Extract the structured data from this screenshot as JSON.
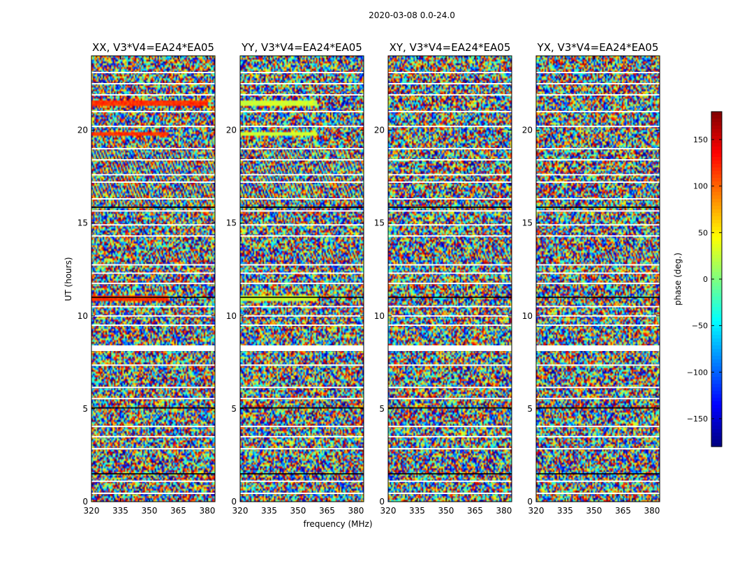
{
  "figure": {
    "suptitle": "2020-03-08 0.0-24.0",
    "xlabel": "frequency (MHz)",
    "ylabel": "UT (hours)"
  },
  "colorbar": {
    "label": "phase (deg.)",
    "range": [
      -180,
      180
    ],
    "ticks": [
      150,
      100,
      50,
      0,
      -50,
      -100,
      -150
    ],
    "tick_labels": [
      "150",
      "100",
      "50",
      "0",
      "−50",
      "−100",
      "−150"
    ],
    "colormap": [
      "#00007f",
      "#0000ff",
      "#007fff",
      "#00ffff",
      "#7fff7f",
      "#ffff00",
      "#ff7f00",
      "#ff0000",
      "#7f0000"
    ]
  },
  "chart_data": [
    {
      "type": "heatmap",
      "title": "XX, V3*V4=EA24*EA05",
      "xlabel": "frequency (MHz)",
      "ylabel": "UT (hours)",
      "xlim": [
        320,
        384
      ],
      "ylim": [
        0,
        24
      ],
      "xticks": [
        320,
        335,
        350,
        365,
        380
      ],
      "xtick_labels": [
        "320",
        "335",
        "350",
        "365",
        "380"
      ],
      "yticks": [
        0,
        5,
        10,
        15,
        20
      ],
      "ytick_labels": [
        "0",
        "5",
        "10",
        "15",
        "20"
      ],
      "value": "phase (deg.), mostly random noise in [-180, 180]",
      "features": [
        {
          "kind": "coherent",
          "ut": [
            21.3,
            21.6
          ],
          "freq": [
            320,
            380
          ],
          "phase_deg": 120
        },
        {
          "kind": "coherent",
          "ut": [
            19.7,
            19.9
          ],
          "freq": [
            320,
            360
          ],
          "phase_deg": 120
        },
        {
          "kind": "coherent",
          "ut": [
            10.8,
            11.1
          ],
          "freq": [
            320,
            360
          ],
          "phase_deg": 120
        },
        {
          "kind": "fringe",
          "ut": [
            16.0,
            19.0
          ],
          "freq": [
            320,
            384
          ]
        },
        {
          "kind": "fringe",
          "ut": [
            13.0,
            13.5
          ],
          "freq": [
            350,
            384
          ]
        }
      ]
    },
    {
      "type": "heatmap",
      "title": "YY, V3*V4=EA24*EA05",
      "xlabel": "frequency (MHz)",
      "ylabel": "UT (hours)",
      "xlim": [
        320,
        384
      ],
      "ylim": [
        0,
        24
      ],
      "xticks": [
        320,
        335,
        350,
        365,
        380
      ],
      "xtick_labels": [
        "320",
        "335",
        "350",
        "365",
        "380"
      ],
      "yticks": [
        0,
        5,
        10,
        15,
        20
      ],
      "ytick_labels": [
        "0",
        "5",
        "10",
        "15",
        "20"
      ],
      "value": "phase (deg.), mostly random noise in [-180, 180]",
      "features": [
        {
          "kind": "coherent",
          "ut": [
            21.3,
            21.6
          ],
          "freq": [
            320,
            360
          ],
          "phase_deg": 30
        },
        {
          "kind": "coherent",
          "ut": [
            19.7,
            19.9
          ],
          "freq": [
            320,
            360
          ],
          "phase_deg": 30
        },
        {
          "kind": "coherent",
          "ut": [
            10.8,
            11.1
          ],
          "freq": [
            320,
            360
          ],
          "phase_deg": 30
        },
        {
          "kind": "fringe",
          "ut": [
            16.0,
            19.0
          ],
          "freq": [
            320,
            384
          ]
        },
        {
          "kind": "fringe",
          "ut": [
            13.0,
            13.5
          ],
          "freq": [
            350,
            384
          ]
        }
      ]
    },
    {
      "type": "heatmap",
      "title": "XY, V3*V4=EA24*EA05",
      "xlabel": "frequency (MHz)",
      "ylabel": "UT (hours)",
      "xlim": [
        320,
        384
      ],
      "ylim": [
        0,
        24
      ],
      "xticks": [
        320,
        335,
        350,
        365,
        380
      ],
      "xtick_labels": [
        "320",
        "335",
        "350",
        "365",
        "380"
      ],
      "yticks": [
        0,
        5,
        10,
        15,
        20
      ],
      "ytick_labels": [
        "0",
        "5",
        "10",
        "15",
        "20"
      ],
      "value": "phase (deg.), mostly random noise in [-180, 180]",
      "features": [
        {
          "kind": "fringe",
          "ut": [
            13.0,
            13.5
          ],
          "freq": [
            350,
            384
          ]
        }
      ]
    },
    {
      "type": "heatmap",
      "title": "YX, V3*V4=EA24*EA05",
      "xlabel": "frequency (MHz)",
      "ylabel": "UT (hours)",
      "xlim": [
        320,
        384
      ],
      "ylim": [
        0,
        24
      ],
      "xticks": [
        320,
        335,
        350,
        365,
        380
      ],
      "xtick_labels": [
        "320",
        "335",
        "350",
        "365",
        "380"
      ],
      "yticks": [
        0,
        5,
        10,
        15,
        20
      ],
      "ytick_labels": [
        "0",
        "5",
        "10",
        "15",
        "20"
      ],
      "value": "phase (deg.), mostly random noise in [-180, 180]",
      "features": [
        {
          "kind": "fringe",
          "ut": [
            13.0,
            13.5
          ],
          "freq": [
            350,
            384
          ]
        }
      ]
    }
  ]
}
